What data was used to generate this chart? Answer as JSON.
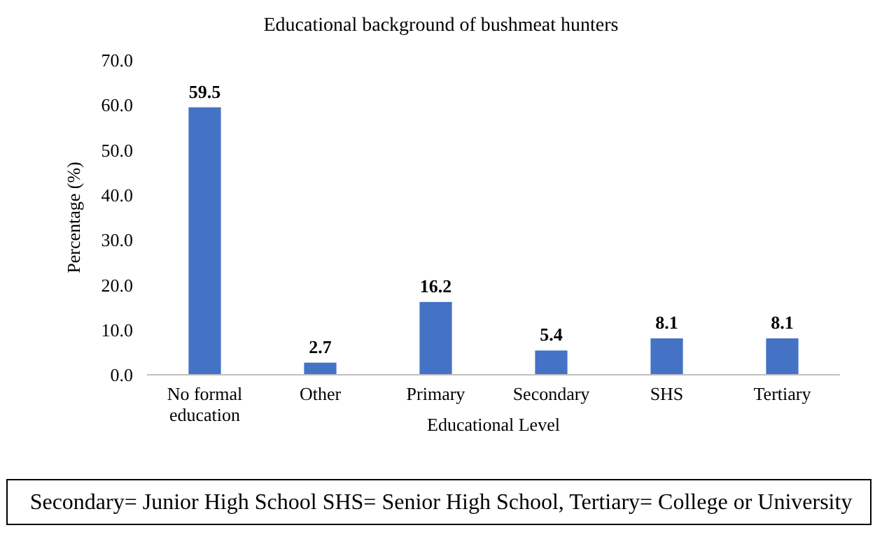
{
  "chart_data": {
    "type": "bar",
    "title": "Educational background of bushmeat hunters",
    "xlabel": "Educational Level",
    "ylabel": "Percentage (%)",
    "categories": [
      "No formal education",
      "Other",
      "Primary",
      "Secondary",
      "SHS",
      "Tertiary"
    ],
    "values": [
      59.5,
      2.7,
      16.2,
      5.4,
      8.1,
      8.1
    ],
    "color": "#4472c4",
    "data_labels": true,
    "ylim": [
      0,
      70
    ],
    "yticks": [
      {
        "value": 0,
        "label": "0.0"
      },
      {
        "value": 10,
        "label": "10.0"
      },
      {
        "value": 20,
        "label": "20.0"
      },
      {
        "value": 30,
        "label": "30.0"
      },
      {
        "value": 40,
        "label": "40.0"
      },
      {
        "value": 50,
        "label": "50.0"
      },
      {
        "value": 60,
        "label": "60.0"
      },
      {
        "value": 70,
        "label": "70.0"
      }
    ],
    "annotations": [
      "Secondary= Junior High School SHS= Senior High School, Tertiary= College or University"
    ]
  }
}
